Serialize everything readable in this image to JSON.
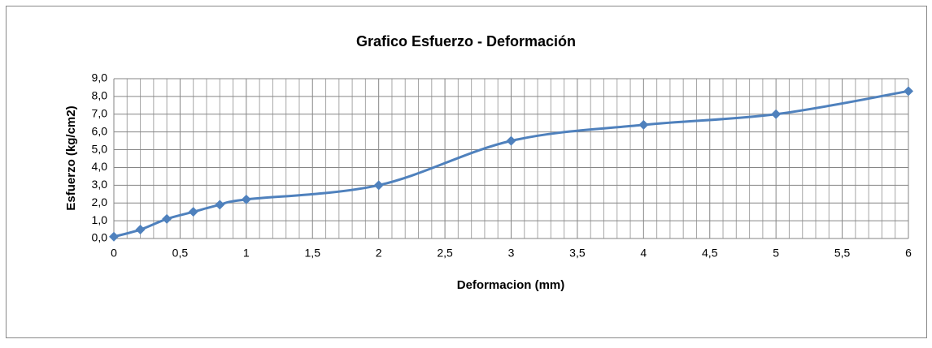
{
  "chart_data": {
    "type": "scatter",
    "title": "Grafico Esfuerzo - Deformación",
    "xlabel": "Deformacion (mm)",
    "ylabel": "Esfuerzo (kg/cm2)",
    "x": [
      0,
      0.2,
      0.4,
      0.6,
      0.8,
      1,
      2,
      3,
      4,
      5,
      6
    ],
    "series": [
      {
        "name": "Esfuerzo",
        "color": "#4f81bd",
        "values": [
          0.1,
          0.5,
          1.1,
          1.5,
          1.9,
          2.2,
          3.0,
          5.5,
          6.4,
          7.0,
          8.3
        ]
      }
    ],
    "xlim": [
      0,
      6
    ],
    "xticks": [
      0,
      {
        "value": 0.5,
        "label": "0,5"
      },
      1,
      {
        "value": 1.5,
        "label": "1,5"
      },
      2,
      {
        "value": 2.5,
        "label": "2,5"
      },
      3,
      {
        "value": 3.5,
        "label": "3,5"
      },
      4,
      {
        "value": 4.5,
        "label": "4,5"
      },
      5,
      {
        "value": 5.5,
        "label": "5,5"
      },
      6
    ],
    "ylim": [
      0,
      9
    ],
    "yticks": [
      {
        "value": 0,
        "label": "0,0"
      },
      {
        "value": 1,
        "label": "1,0"
      },
      {
        "value": 2,
        "label": "2,0"
      },
      {
        "value": 3,
        "label": "3,0"
      },
      {
        "value": 4,
        "label": "4,0"
      },
      {
        "value": 5,
        "label": "5,0"
      },
      {
        "value": 6,
        "label": "6,0"
      },
      {
        "value": 7,
        "label": "7,0"
      },
      {
        "value": 8,
        "label": "8,0"
      },
      {
        "value": 9,
        "label": "9,0"
      }
    ],
    "grid": true,
    "minor_grid": true,
    "smooth": true,
    "marker": "diamond"
  }
}
